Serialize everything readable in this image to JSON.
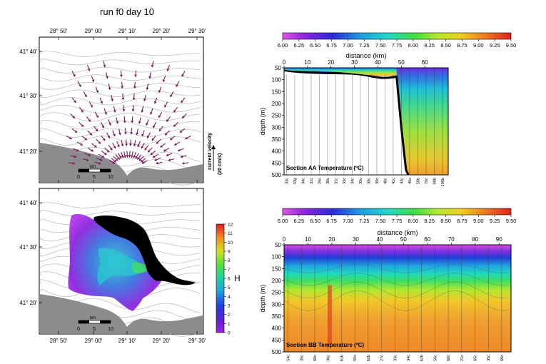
{
  "title": "run f0 day 10",
  "colors": {
    "land": "#8c8c8c",
    "arrows": "#7a1a5a",
    "contours": "#9a9a9a",
    "bottom": "#000000"
  },
  "maps": {
    "x_ticks": [
      "28° 50'",
      "29° 00'",
      "29° 10'",
      "29° 20'",
      "29° 30'"
    ],
    "y_ticks": [
      "41° 40'",
      "41° 30'",
      "41° 20'"
    ],
    "scale_km": [
      "0",
      "5",
      "10"
    ],
    "scale_unit": "km",
    "velocity_label": "current velocity",
    "velocity_unit": "(20 cm/s)",
    "h_label": "H",
    "h_ticks": [
      "0",
      "1",
      "2",
      "3",
      "4",
      "5",
      "6",
      "7",
      "8",
      "9",
      "10",
      "11",
      "12"
    ]
  },
  "chart_data": [
    {
      "type": "heatmap",
      "title": "Section AA Temperature (ºC)",
      "xlabel": "distance (km)",
      "ylabel": "depth (m)",
      "xlim": [
        0,
        70
      ],
      "ylim": [
        500,
        50
      ],
      "x_ticks": [
        "0",
        "10",
        "20",
        "30",
        "40",
        "50",
        "60"
      ],
      "y_ticks": [
        "50",
        "100",
        "150",
        "200",
        "250",
        "300",
        "350",
        "400",
        "450",
        "500"
      ],
      "colorbar": {
        "range": [
          6.0,
          9.5
        ],
        "ticks": [
          "6.00",
          "6.25",
          "6.50",
          "6.75",
          "7.00",
          "7.25",
          "7.50",
          "7.75",
          "8.00",
          "8.25",
          "8.50",
          "8.75",
          "9.00",
          "9.25",
          "9.50"
        ]
      },
      "stations": [
        "33c",
        "33g",
        "34c",
        "31c",
        "26c",
        "30c",
        "31c",
        "33c",
        "34c",
        "35c",
        "38c",
        "39c",
        "40c",
        "41c",
        "43c",
        "45c",
        "50b",
        "70c",
        "80b",
        "100b"
      ]
    },
    {
      "type": "heatmap",
      "title": "Section BB Temperature (ºC)",
      "xlabel": "distance (km)",
      "ylabel": "depth (m)",
      "xlim": [
        0,
        95
      ],
      "ylim": [
        500,
        50
      ],
      "x_ticks": [
        "0",
        "10",
        "20",
        "30",
        "40",
        "50",
        "60",
        "70",
        "80",
        "90"
      ],
      "y_ticks": [
        "50",
        "100",
        "150",
        "200",
        "250",
        "300",
        "350",
        "400",
        "450",
        "500"
      ],
      "colorbar": {
        "range": [
          6.0,
          9.5
        ],
        "ticks": [
          "6.00",
          "6.25",
          "6.50",
          "6.75",
          "7.00",
          "7.25",
          "7.50",
          "7.75",
          "8.00",
          "8.25",
          "8.50",
          "8.75",
          "9.00",
          "9.25",
          "9.50"
        ]
      },
      "stations": [
        "54c",
        "35c",
        "60c",
        "36c",
        "61b",
        "55c",
        "62b",
        "27c",
        "33c",
        "34c",
        "62b",
        "56c",
        "60c",
        "21c",
        "65c",
        "35c",
        "66c"
      ]
    }
  ]
}
